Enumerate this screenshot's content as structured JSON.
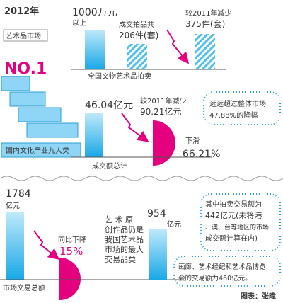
{
  "header": {
    "year": "2012年",
    "market": "艺术品市场",
    "rank": "NO.1",
    "industry": "国内文化产业九大类"
  },
  "auction": {
    "amount_line1": "1000万元",
    "amount_line2": "以上",
    "lots_label": "成交拍品共",
    "lots": "206件(套)",
    "decrease_label": "较2011年减少",
    "decrease": "375件(套)",
    "caption": "全国文物艺术品拍卖"
  },
  "turnover": {
    "total": "46.04亿元",
    "decrease_label": "较2011年减少",
    "decrease": "90.21亿元",
    "drop_label": "下滑",
    "drop": "66.21%",
    "caption": "成交额总计",
    "note_lines": [
      "远远超过整体市场",
      "47.88%的降幅"
    ]
  },
  "market": {
    "total": "1784",
    "unit": "亿元",
    "drop_label": "同比下降",
    "drop": "15%",
    "caption": "市场交易总额"
  },
  "original": {
    "text_lines": [
      "艺 术 原",
      "创作品仍是",
      "我国艺术品",
      "市场的最大",
      "交易品类"
    ],
    "value": "954",
    "unit": "亿元",
    "note1_lines": [
      "其中拍卖交易额为",
      "442亿元(未将港",
      "、澳、台等地区的市场",
      "成交额计算在内)"
    ],
    "note2_lines": [
      "画廊、艺术经纪和艺术品博览",
      "会的交易额为460亿元。"
    ]
  },
  "credit": "图表：张暐"
}
